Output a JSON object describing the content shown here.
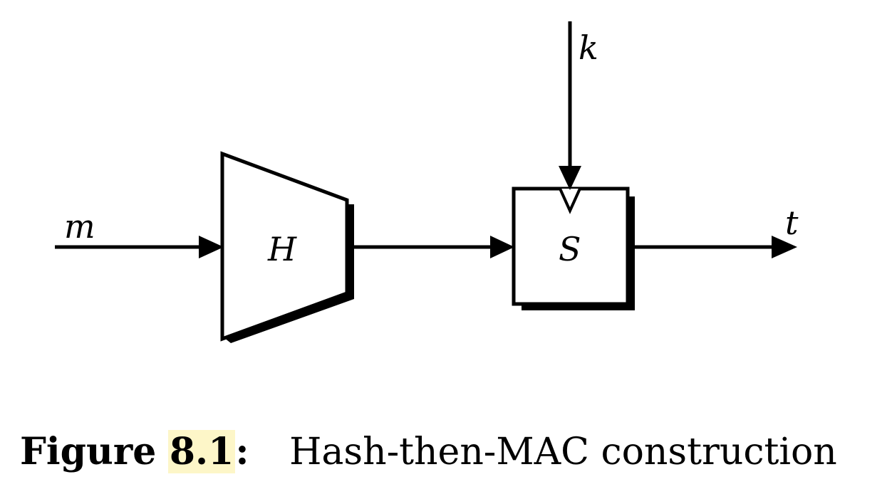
{
  "diagram": {
    "input_label": "m",
    "hash_label": "H",
    "mac_label": "S",
    "key_label": "k",
    "output_label": "t"
  },
  "caption": {
    "prefix": "Figure",
    "number": "8.1",
    "separator": ":",
    "text": "Hash-then-MAC construction"
  },
  "colors": {
    "stroke": "#000000",
    "background": "#ffffff",
    "highlight": "#fdf6c8"
  }
}
